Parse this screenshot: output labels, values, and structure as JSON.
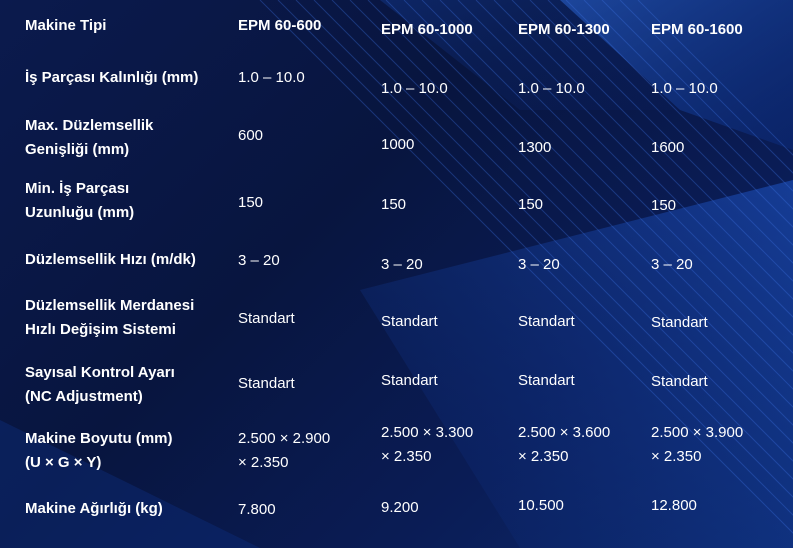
{
  "table": {
    "header": {
      "label": "Makine Tipi",
      "models": [
        "EPM 60-600",
        "EPM 60-1000",
        "EPM 60-1300",
        "EPM 60-1600"
      ]
    },
    "rows": [
      {
        "label": [
          "İş Parçası Kalınlığı (mm)"
        ],
        "values": [
          [
            "1.0 – 10.0"
          ],
          [
            "1.0 – 10.0"
          ],
          [
            "1.0 – 10.0"
          ],
          [
            "1.0 – 10.0"
          ]
        ]
      },
      {
        "label": [
          "Max. Düzlemsellik",
          "Genişliği (mm)"
        ],
        "values": [
          [
            "600"
          ],
          [
            "1000"
          ],
          [
            "1300"
          ],
          [
            "1600"
          ]
        ]
      },
      {
        "label": [
          "Min. İş Parçası",
          "Uzunluğu (mm)"
        ],
        "values": [
          [
            "150"
          ],
          [
            "150"
          ],
          [
            "150"
          ],
          [
            "150"
          ]
        ]
      },
      {
        "label": [
          "Düzlemsellik Hızı (m/dk)"
        ],
        "values": [
          [
            "3 – 20"
          ],
          [
            "3 – 20"
          ],
          [
            "3 – 20"
          ],
          [
            "3 – 20"
          ]
        ]
      },
      {
        "label": [
          "Düzlemsellik Merdanesi",
          "Hızlı Değişim Sistemi"
        ],
        "values": [
          [
            "Standart"
          ],
          [
            "Standart"
          ],
          [
            "Standart"
          ],
          [
            "Standart"
          ]
        ]
      },
      {
        "label": [
          "Sayısal Kontrol Ayarı",
          "(NC Adjustment)"
        ],
        "values": [
          [
            "Standart"
          ],
          [
            "Standart"
          ],
          [
            "Standart"
          ],
          [
            "Standart"
          ]
        ]
      },
      {
        "label": [
          "Makine Boyutu (mm)",
          "(U × G × Y)"
        ],
        "values": [
          [
            "2.500 × 2.900",
            "× 2.350"
          ],
          [
            "2.500 × 3.300",
            "× 2.350"
          ],
          [
            "2.500 × 3.600",
            "× 2.350"
          ],
          [
            "2.500 × 3.900",
            "× 2.350"
          ]
        ]
      },
      {
        "label": [
          "Makine Ağırlığı (kg)"
        ],
        "values": [
          [
            "7.800"
          ],
          [
            "9.200"
          ],
          [
            "10.500"
          ],
          [
            "12.800"
          ]
        ]
      }
    ]
  }
}
